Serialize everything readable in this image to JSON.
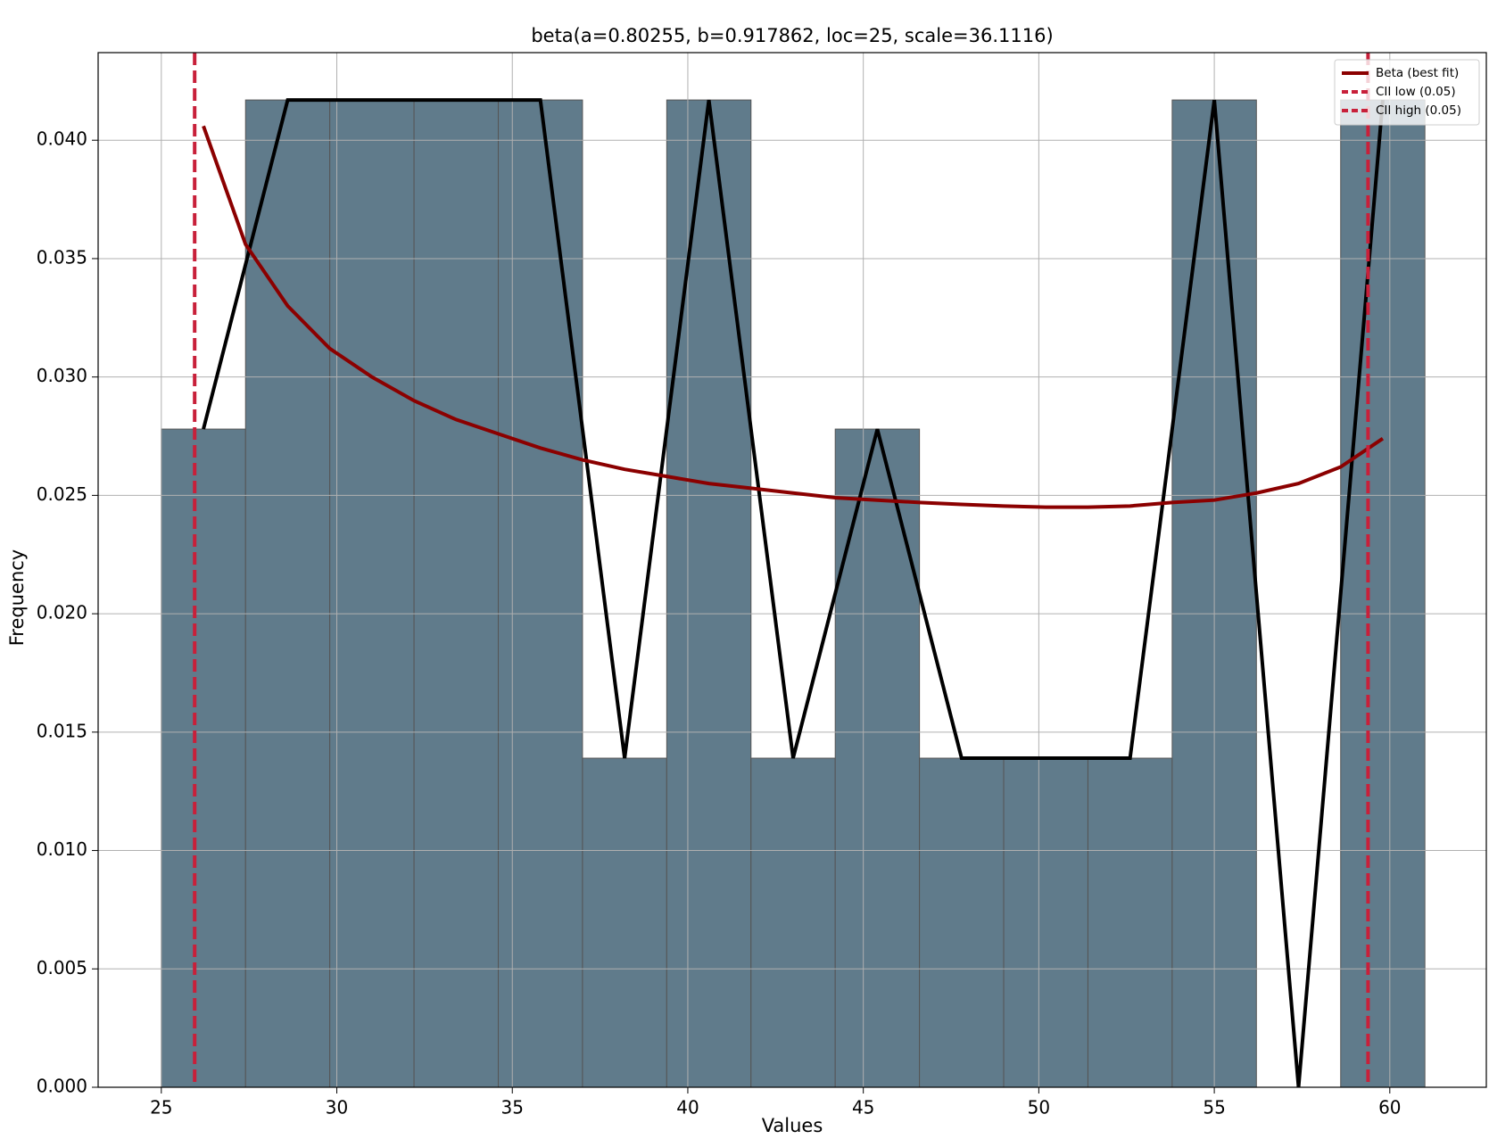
{
  "chart_data": {
    "type": "histogram",
    "title": "beta(a=0.80255, b=0.917862, loc=25, scale=36.1116)",
    "x_label": "Values",
    "y_label": "Frequency",
    "bins": [
      25,
      27.4,
      29.8,
      32.2,
      34.6,
      37,
      39.4,
      41.8,
      44.2,
      46.6,
      49,
      51.4,
      53.8,
      56.2,
      58.6,
      61
    ],
    "values": [
      0.0278,
      0.0417,
      0.0417,
      0.0417,
      0.0417,
      0.0139,
      0.0417,
      0.0139,
      0.0278,
      0.0139,
      0.0139,
      0.0139,
      0.0417,
      0,
      0.0417
    ],
    "color": "#607b8b",
    "edge_color": "#555555",
    "line_color": "#000000",
    "fit": {
      "name": "Beta (best fit)",
      "color": "#8b0000",
      "x": [
        26.2,
        27.4,
        28.6,
        29.8,
        31,
        32.2,
        33.4,
        34.6,
        35.8,
        37,
        38.2,
        39.4,
        40.6,
        41.8,
        43,
        44.2,
        45.4,
        46.6,
        47.8,
        49,
        50.2,
        51.4,
        52.6,
        53.8,
        55,
        56.2,
        57.4,
        58.6,
        59.8
      ],
      "values": [
        0.0406,
        0.0356,
        0.033,
        0.0312,
        0.03,
        0.029,
        0.0282,
        0.0276,
        0.027,
        0.0265,
        0.0261,
        0.0258,
        0.0255,
        0.0253,
        0.0251,
        0.0249,
        0.0248,
        0.0247,
        0.02462,
        0.02455,
        0.0245,
        0.0245,
        0.02455,
        0.0247,
        0.0248,
        0.0251,
        0.0255,
        0.0262,
        0.0274
      ]
    },
    "reference_lines": [
      {
        "name": "CII low (0.05)",
        "x": 25.95,
        "color": "#c8203a"
      },
      {
        "name": "CII high (0.05)",
        "x": 59.38,
        "color": "#c8203a"
      }
    ],
    "xlim": [
      23.2,
      62.75
    ],
    "ylim": [
      0,
      0.0437
    ],
    "xticks": [
      25,
      30,
      35,
      40,
      45,
      50,
      55,
      60
    ],
    "yticks": [
      {
        "value": 0,
        "label": "0.000"
      },
      0.005,
      {
        "value": 0.01,
        "label": "0.010"
      },
      0.015,
      {
        "value": 0.02,
        "label": "0.020"
      },
      0.025,
      {
        "value": 0.03,
        "label": "0.030"
      },
      0.035,
      {
        "value": 0.04,
        "label": "0.040"
      }
    ],
    "grid": true,
    "legend": "upper right"
  }
}
